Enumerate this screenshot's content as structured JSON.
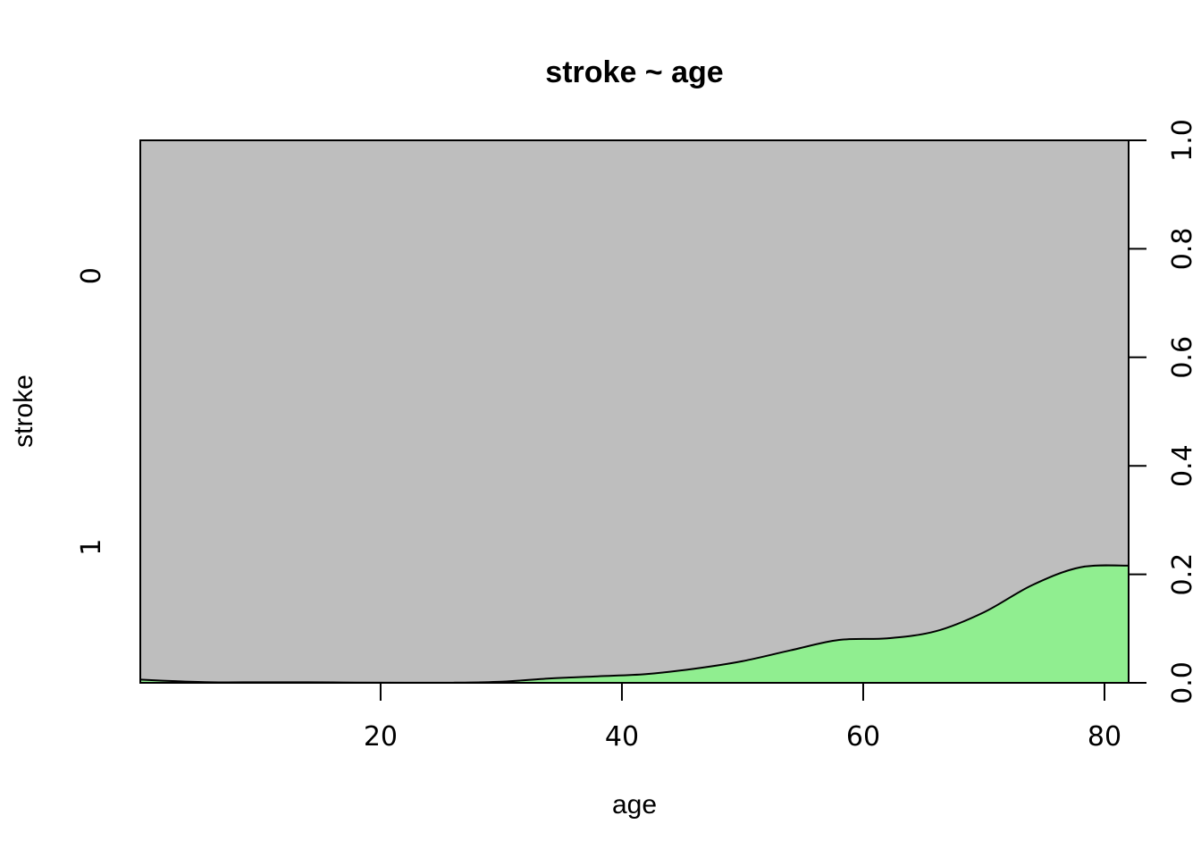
{
  "chart_data": {
    "type": "area",
    "title": "stroke ~ age",
    "xlabel": "age",
    "ylabel": "stroke",
    "xlim": [
      0.08,
      82
    ],
    "ylim": [
      0,
      1
    ],
    "x_ticks": [
      "20",
      "40",
      "60",
      "80"
    ],
    "y_left_categories": [
      "0",
      "1"
    ],
    "y_right_ticks": [
      "0.0",
      "0.2",
      "0.4",
      "0.6",
      "0.8",
      "1.0"
    ],
    "grid": false,
    "colors": {
      "stroke_1": "#90ee90",
      "stroke_0": "#bebebe",
      "line": "#000000"
    },
    "series": [
      {
        "name": "1",
        "x": [
          0.08,
          3,
          6,
          10,
          14,
          18,
          22,
          26,
          30,
          34,
          38,
          42,
          46,
          50,
          54,
          58,
          62,
          66,
          70,
          74,
          78,
          82
        ],
        "y": [
          0.006,
          0.003,
          0.001,
          0.001,
          0.001,
          0.0005,
          0.0002,
          0.0003,
          0.002,
          0.008,
          0.012,
          0.016,
          0.026,
          0.04,
          0.06,
          0.079,
          0.082,
          0.095,
          0.13,
          0.18,
          0.213,
          0.216
        ]
      }
    ]
  }
}
